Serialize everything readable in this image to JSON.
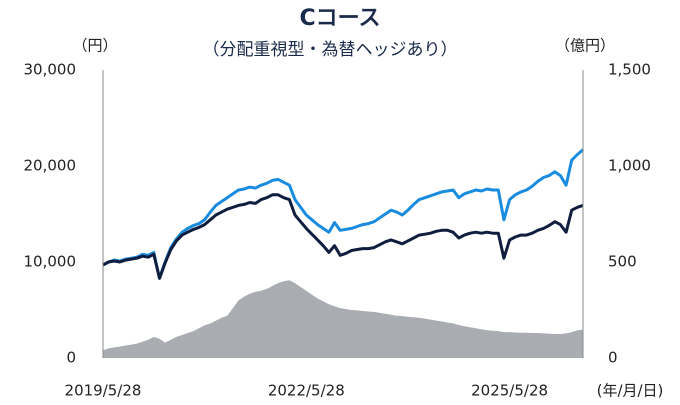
{
  "chart_data": {
    "type": "line",
    "title": "Cコース",
    "subtitle": "（分配重視型・為替ヘッジあり）",
    "y_label": "（円）",
    "y2_label": "（億円）",
    "x_label": "(年/月/日)",
    "categories": [
      "2019/5/28",
      null,
      null,
      null,
      null,
      null,
      null,
      null,
      null,
      null,
      null,
      null,
      null,
      null,
      null,
      null,
      null,
      null,
      null,
      null,
      null,
      null,
      null,
      null,
      null,
      null,
      null,
      null,
      null,
      null,
      null,
      null,
      null,
      null,
      null,
      null,
      "2022/5/28",
      null,
      null,
      null,
      null,
      null,
      null,
      null,
      null,
      null,
      null,
      null,
      null,
      null,
      null,
      null,
      null,
      null,
      null,
      null,
      null,
      null,
      null,
      null,
      null,
      null,
      null,
      null,
      null,
      null,
      null,
      null,
      null,
      null,
      null,
      null,
      "2025/5/28",
      null,
      null,
      null,
      null,
      null,
      null,
      null,
      null,
      null,
      null,
      null,
      null,
      null
    ],
    "series": [
      {
        "color": "#1a8ce0",
        "values": [
          9700,
          10000,
          10200,
          10100,
          10300,
          10400,
          10500,
          10800,
          10700,
          11000,
          8300,
          10000,
          11500,
          12400,
          13100,
          13500,
          13800,
          14000,
          14400,
          15200,
          15900,
          16300,
          16700,
          17100,
          17500,
          17600,
          17800,
          17700,
          18000,
          18200,
          18500,
          18600,
          18300,
          18000,
          16500,
          15700,
          14900,
          14400,
          13900,
          13500,
          13100,
          14100,
          13300,
          13400,
          13500,
          13700,
          13900,
          14000,
          14200,
          14600,
          15000,
          15400,
          15200,
          14900,
          15400,
          16000,
          16500,
          16700,
          16900,
          17100,
          17300,
          17400,
          17500,
          16700,
          17100,
          17300,
          17500,
          17400,
          17600,
          17500,
          17500,
          14400,
          16500,
          17000,
          17300,
          17500,
          17900,
          18400,
          18800,
          19000,
          19400,
          19000,
          18000,
          20600,
          21200,
          21700
        ]
      },
      {
        "color": "#0f1e3f",
        "values": [
          9700,
          10000,
          10100,
          10000,
          10200,
          10300,
          10400,
          10600,
          10500,
          10800,
          8300,
          9900,
          11300,
          12200,
          12800,
          13100,
          13400,
          13600,
          13900,
          14400,
          14900,
          15200,
          15500,
          15700,
          15900,
          16000,
          16200,
          16100,
          16500,
          16700,
          17000,
          17000,
          16700,
          16500,
          14900,
          14200,
          13500,
          12900,
          12300,
          11700,
          11000,
          11700,
          10700,
          10900,
          11200,
          11300,
          11400,
          11400,
          11500,
          11800,
          12100,
          12300,
          12100,
          11900,
          12200,
          12500,
          12800,
          12900,
          13000,
          13200,
          13300,
          13300,
          13100,
          12500,
          12800,
          13000,
          13100,
          13000,
          13100,
          13000,
          13000,
          10400,
          12300,
          12600,
          12800,
          12800,
          13000,
          13300,
          13500,
          13800,
          14200,
          13900,
          13100,
          15400,
          15700,
          15900
        ]
      },
      {
        "color": "#a9adb2",
        "axis": "y2",
        "kind": "area",
        "values": [
          40,
          50,
          55,
          60,
          65,
          70,
          75,
          85,
          95,
          110,
          100,
          80,
          95,
          110,
          120,
          130,
          140,
          155,
          170,
          180,
          195,
          210,
          220,
          260,
          300,
          320,
          335,
          345,
          350,
          360,
          375,
          390,
          400,
          405,
          390,
          370,
          350,
          330,
          310,
          295,
          280,
          270,
          260,
          255,
          250,
          248,
          245,
          242,
          240,
          235,
          230,
          225,
          220,
          218,
          215,
          212,
          210,
          205,
          200,
          195,
          190,
          185,
          180,
          172,
          165,
          160,
          155,
          150,
          145,
          142,
          140,
          135,
          135,
          133,
          132,
          131,
          130,
          130,
          128,
          127,
          125,
          125,
          128,
          135,
          145,
          148
        ]
      }
    ],
    "ylim": [
      0,
      30000
    ],
    "yticks": [
      0,
      {
        "value": 10000,
        "label": "10,000"
      },
      {
        "value": 20000,
        "label": "20,000"
      },
      {
        "value": 30000,
        "label": "30,000"
      }
    ],
    "y2lim": [
      0,
      1500
    ],
    "y2ticks": [
      0,
      500,
      {
        "value": 1000,
        "label": "1,000"
      },
      {
        "value": 1500,
        "label": "1,500"
      }
    ],
    "grid": false
  }
}
